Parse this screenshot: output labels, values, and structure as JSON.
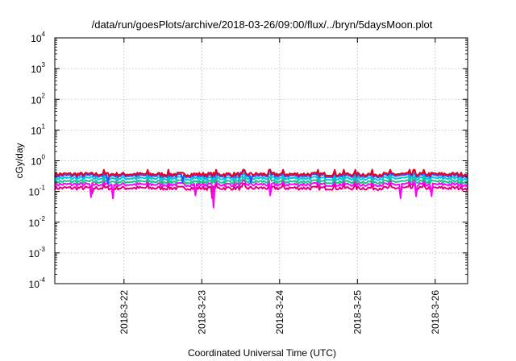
{
  "chart_data": {
    "type": "line",
    "title": "/data/run/goesPlots/archive/2018-03-26/09:00/flux/../bryn/5daysMoon.plot",
    "xlabel": "Coordinated Universal Time (UTC)",
    "ylabel": "cGy/day",
    "yscale": "log",
    "ylim": [
      0.0001,
      10000
    ],
    "xlim": [
      "2018-03-21 02:40",
      "2018-03-26 10:00"
    ],
    "grid": true,
    "x_tick_labels": [
      "2018-3-22",
      "2018-3-23",
      "2018-3-24",
      "2018-3-25",
      "2018-3-26"
    ],
    "x_ticks": [
      "2018-03-22",
      "2018-03-23",
      "2018-03-24",
      "2018-03-25",
      "2018-03-26"
    ],
    "y_ticks": [
      {
        "base": "10",
        "exp": "-4",
        "value": 0.0001
      },
      {
        "base": "10",
        "exp": "-3",
        "value": 0.001
      },
      {
        "base": "10",
        "exp": "-2",
        "value": 0.01
      },
      {
        "base": "10",
        "exp": "-1",
        "value": 0.1
      },
      {
        "base": "10",
        "exp": "0",
        "value": 1
      },
      {
        "base": "10",
        "exp": "1",
        "value": 10
      },
      {
        "base": "10",
        "exp": "2",
        "value": 100
      },
      {
        "base": "10",
        "exp": "3",
        "value": 1000
      },
      {
        "base": "10",
        "exp": "4",
        "value": 10000
      }
    ],
    "series": [
      {
        "color": "#e0007a",
        "level": 0.13,
        "dips": [
          {
            "x": "2018-03-21 14:20",
            "value": 0.085
          },
          {
            "x": "2018-03-21 20:40",
            "value": 0.075
          },
          {
            "x": "2018-03-22 22:00",
            "value": 0.08
          },
          {
            "x": "2018-03-23 03:20",
            "value": 0.06
          },
          {
            "x": "2018-03-23 21:00",
            "value": 0.08
          },
          {
            "x": "2018-03-25 13:20",
            "value": 0.07
          },
          {
            "x": "2018-03-25 18:00",
            "value": 0.08
          },
          {
            "x": "2018-03-25 23:00",
            "value": 0.085
          }
        ]
      },
      {
        "color": "#ff00ff",
        "level": 0.17,
        "dips": [
          {
            "x": "2018-03-21 13:40",
            "value": 0.065
          },
          {
            "x": "2018-03-21 20:30",
            "value": 0.06
          },
          {
            "x": "2018-03-22 22:00",
            "value": 0.075
          },
          {
            "x": "2018-03-23 03:30",
            "value": 0.03
          },
          {
            "x": "2018-03-23 21:00",
            "value": 0.075
          },
          {
            "x": "2018-03-25 13:20",
            "value": 0.06
          },
          {
            "x": "2018-03-25 18:00",
            "value": 0.07
          },
          {
            "x": "2018-03-25 23:00",
            "value": 0.07
          }
        ]
      },
      {
        "color": "#22c08a",
        "level": 0.21,
        "dips": []
      },
      {
        "color": "#00c8d6",
        "level": 0.27,
        "dips": []
      },
      {
        "color": "#2255ff",
        "level": 0.33,
        "dips": [
          {
            "x": "2018-03-21 19:00",
            "value": 0.18
          },
          {
            "x": "2018-03-22 18:00",
            "value": 0.19
          },
          {
            "x": "2018-03-23 15:00",
            "value": 0.19
          }
        ]
      },
      {
        "color": "#e8002a",
        "level": 0.37,
        "dips": []
      }
    ]
  }
}
